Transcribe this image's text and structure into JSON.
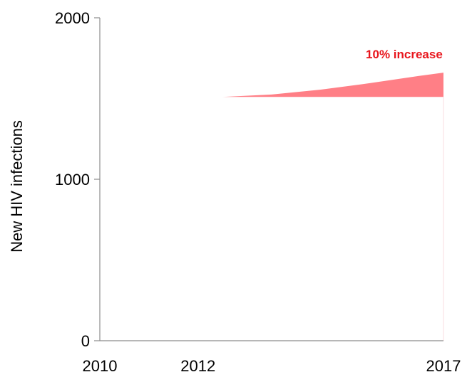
{
  "chart_data": {
    "type": "area",
    "ylabel": "New HIV infections",
    "xlabel": "",
    "xlim": [
      2010,
      2017
    ],
    "ylim": [
      0,
      2000
    ],
    "x_ticks": [
      {
        "value": 2010,
        "label": "2010"
      },
      {
        "value": 2012,
        "label": "2012"
      },
      {
        "value": 2017,
        "label": "2017"
      }
    ],
    "y_ticks": [
      {
        "value": 0,
        "label": "0"
      },
      {
        "value": 1000,
        "label": "1000"
      },
      {
        "value": 2000,
        "label": "2000"
      }
    ],
    "series": [
      {
        "baseline": 1510,
        "x": [
          2012.5,
          2013.5,
          2014.5,
          2015.5,
          2016.5,
          2017
        ],
        "values": [
          1510,
          1525,
          1555,
          1595,
          1640,
          1660
        ],
        "color": "#ff7f86"
      }
    ],
    "annotation": {
      "text": "10% increase",
      "x": 2016.2,
      "y": 1775,
      "color": "#e8151c"
    },
    "grid": false,
    "legend": "none"
  }
}
